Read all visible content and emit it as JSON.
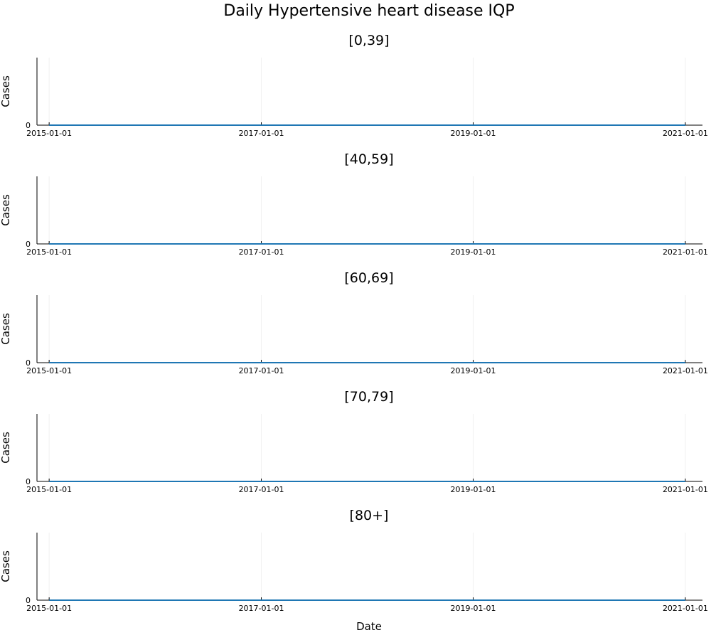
{
  "chart_data": {
    "type": "line",
    "title": "Daily Hypertensive heart disease IQP",
    "xlabel": "Date",
    "xlim": [
      "2014-11-20",
      "2021-03-01"
    ],
    "x_ticks": [
      "2015-01-01",
      "2017-01-01",
      "2019-01-01",
      "2021-01-01"
    ],
    "series_color": "#1f77b4",
    "grid": true,
    "panels": [
      {
        "title": "[0,39]",
        "ylabel": "Cases",
        "y_ticks": [
          "0"
        ],
        "ylim": [
          0,
          1
        ],
        "series": [
          {
            "x": [
              "2015-01-01",
              "2021-01-01"
            ],
            "y": [
              0,
              0
            ]
          }
        ]
      },
      {
        "title": "[40,59]",
        "ylabel": "Cases",
        "y_ticks": [
          "0"
        ],
        "ylim": [
          0,
          1
        ],
        "series": [
          {
            "x": [
              "2015-01-01",
              "2021-01-01"
            ],
            "y": [
              0,
              0
            ]
          }
        ]
      },
      {
        "title": "[60,69]",
        "ylabel": "Cases",
        "y_ticks": [
          "0"
        ],
        "ylim": [
          0,
          1
        ],
        "series": [
          {
            "x": [
              "2015-01-01",
              "2021-01-01"
            ],
            "y": [
              0,
              0
            ]
          }
        ]
      },
      {
        "title": "[70,79]",
        "ylabel": "Cases",
        "y_ticks": [
          "0"
        ],
        "ylim": [
          0,
          1
        ],
        "series": [
          {
            "x": [
              "2015-01-01",
              "2021-01-01"
            ],
            "y": [
              0,
              0
            ]
          }
        ]
      },
      {
        "title": "[80+]",
        "ylabel": "Cases",
        "y_ticks": [
          "0"
        ],
        "ylim": [
          0,
          1
        ],
        "series": [
          {
            "x": [
              "2015-01-01",
              "2021-01-01"
            ],
            "y": [
              0,
              0
            ]
          }
        ]
      }
    ]
  }
}
